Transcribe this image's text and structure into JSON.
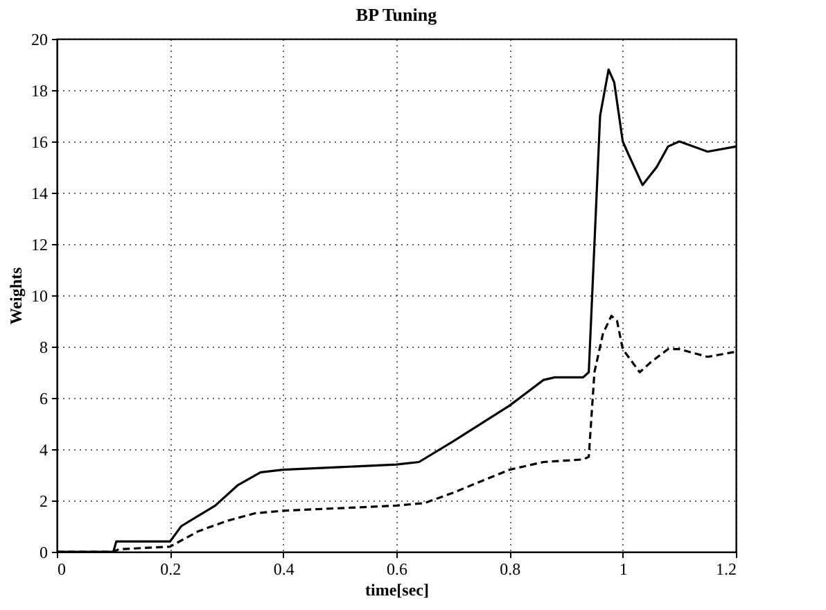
{
  "chart_data": {
    "type": "line",
    "title": "BP Tuning",
    "xlabel": "time[sec]",
    "ylabel": "Weights",
    "xlim": [
      0,
      1.2
    ],
    "ylim": [
      0,
      20
    ],
    "xticks": [
      0,
      0.2,
      0.4,
      0.6,
      0.8,
      1,
      1.2
    ],
    "yticks": [
      0,
      2,
      4,
      6,
      8,
      10,
      12,
      14,
      16,
      18,
      20
    ],
    "grid": true,
    "legend": false,
    "series": [
      {
        "color": "#000000",
        "line_style": "solid",
        "x": [
          0,
          0.1,
          0.105,
          0.2,
          0.22,
          0.25,
          0.28,
          0.32,
          0.36,
          0.4,
          0.5,
          0.6,
          0.64,
          0.7,
          0.8,
          0.86,
          0.88,
          0.93,
          0.94,
          0.95,
          0.96,
          0.975,
          0.985,
          1.0,
          1.01,
          1.035,
          1.06,
          1.08,
          1.1,
          1.15,
          1.2
        ],
        "values": [
          0,
          0,
          0.4,
          0.4,
          1.0,
          1.4,
          1.8,
          2.6,
          3.1,
          3.2,
          3.3,
          3.4,
          3.5,
          4.3,
          5.7,
          6.7,
          6.8,
          6.8,
          7.0,
          12,
          17,
          18.8,
          18.3,
          16.0,
          15.5,
          14.3,
          15.0,
          15.8,
          16.0,
          15.6,
          15.8
        ]
      },
      {
        "color": "#000000",
        "line_style": "dashed",
        "x": [
          0,
          0.1,
          0.11,
          0.2,
          0.25,
          0.3,
          0.35,
          0.4,
          0.5,
          0.6,
          0.65,
          0.7,
          0.8,
          0.86,
          0.93,
          0.94,
          0.95,
          0.965,
          0.98,
          0.99,
          1.0,
          1.03,
          1.05,
          1.08,
          1.1,
          1.15,
          1.2
        ],
        "values": [
          0,
          0,
          0.1,
          0.2,
          0.8,
          1.2,
          1.5,
          1.6,
          1.7,
          1.8,
          1.9,
          2.3,
          3.2,
          3.5,
          3.6,
          3.7,
          7,
          8.5,
          9.2,
          9.0,
          7.9,
          7.0,
          7.4,
          7.9,
          7.9,
          7.6,
          7.8
        ]
      }
    ]
  }
}
